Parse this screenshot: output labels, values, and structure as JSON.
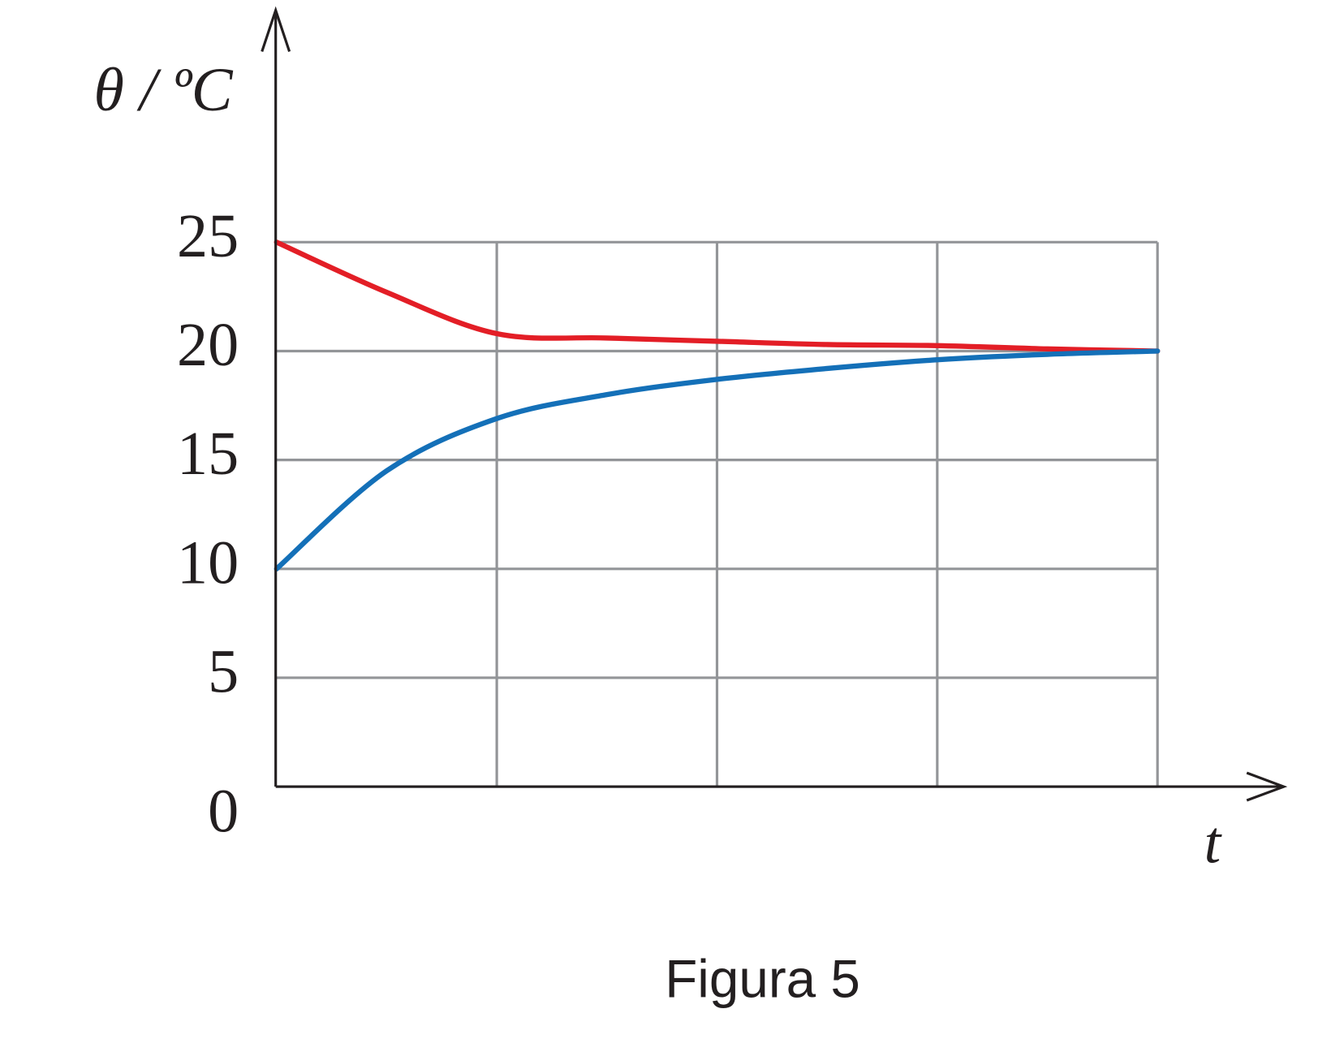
{
  "chart_data": {
    "type": "line",
    "ylabel": "θ / ºC",
    "xlabel": "t",
    "caption": "Figura 5",
    "categories": [
      null,
      null,
      null,
      null,
      null,
      null,
      null,
      null,
      null
    ],
    "series": [
      {
        "color": "#e31e26",
        "values": [
          25,
          22.7,
          20.8,
          20.6,
          20.45,
          20.3,
          20.25,
          20.1,
          20
        ]
      },
      {
        "color": "#1470b8",
        "values": [
          10,
          14.5,
          16.9,
          18.0,
          18.7,
          19.2,
          19.6,
          19.85,
          20
        ]
      }
    ],
    "ylim": [
      0,
      25
    ],
    "yticks": [
      0,
      5,
      10,
      15,
      20,
      25
    ],
    "grid": true
  }
}
